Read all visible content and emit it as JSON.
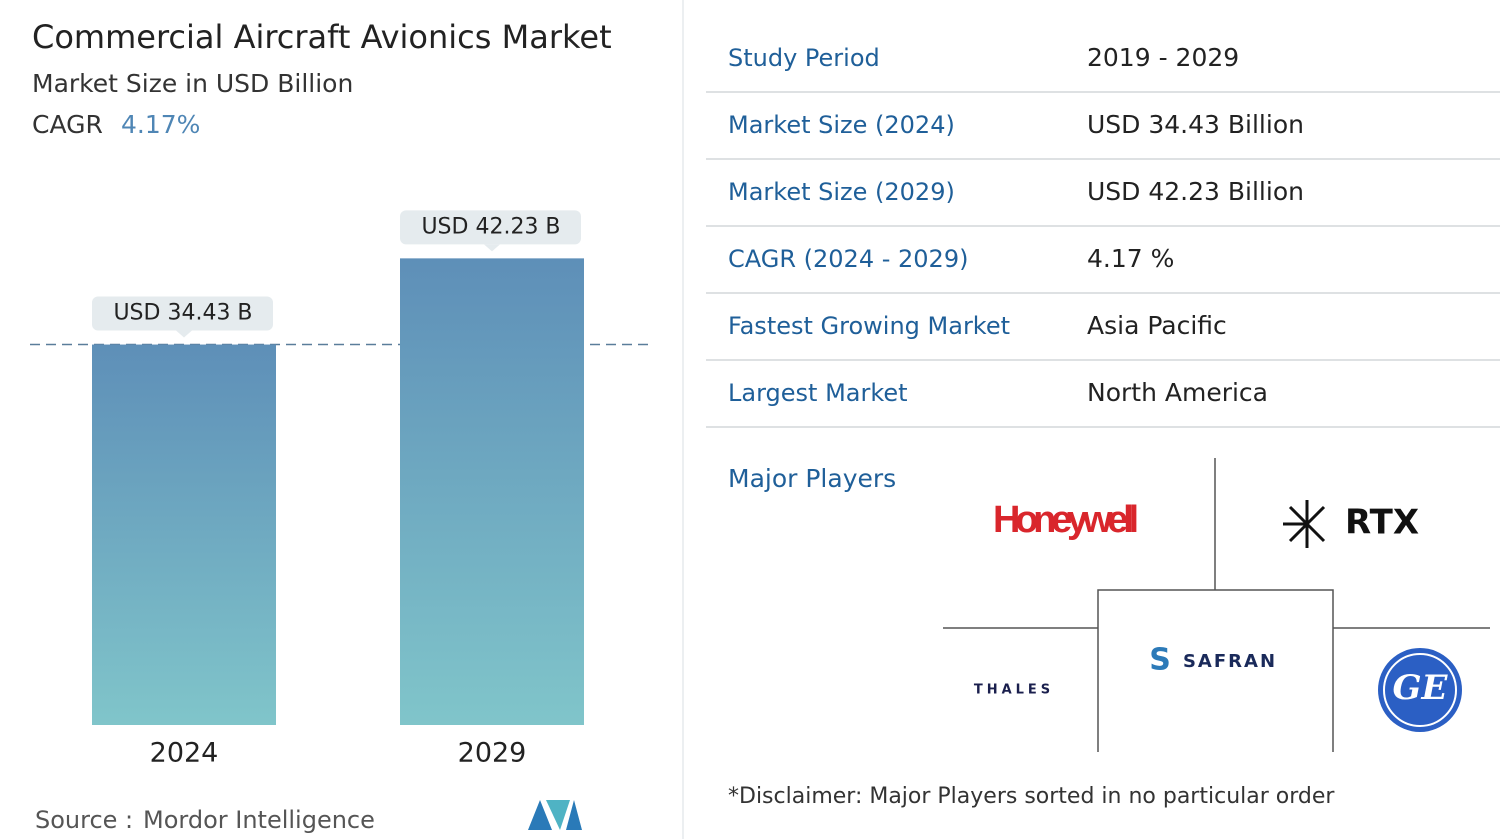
{
  "chart_data": {
    "type": "bar",
    "title": "Commercial Aircraft Avionics Market",
    "subtitle": "Market Size in USD Billion",
    "cagr_label": "CAGR",
    "cagr_value": "4.17%",
    "categories": [
      "2024",
      "2029"
    ],
    "values": [
      34.43,
      42.23
    ],
    "value_labels": [
      "USD 34.43 B",
      "USD 42.23 B"
    ],
    "colors": [
      "#5e8fb8",
      "#80c5ca"
    ],
    "source_label": "Source :",
    "source": "Mordor Intelligence"
  },
  "table": {
    "rows": [
      [
        "Study Period",
        "2019 - 2029"
      ],
      [
        "Market Size (2024)",
        "USD 34.43 Billion"
      ],
      [
        "Market Size (2029)",
        "USD 42.23 Billion"
      ],
      [
        "CAGR (2024 - 2029)",
        "4.17 %"
      ],
      [
        "Fastest Growing Market",
        "Asia Pacific"
      ],
      [
        "Largest Market",
        "North America"
      ]
    ]
  },
  "major_players": {
    "title": "Major Players",
    "players": [
      "Honeywell",
      "RTX",
      "THALES",
      "SAFRAN",
      "GE"
    ]
  },
  "disclaimer": "*Disclaimer: Major Players sorted in no particular order"
}
